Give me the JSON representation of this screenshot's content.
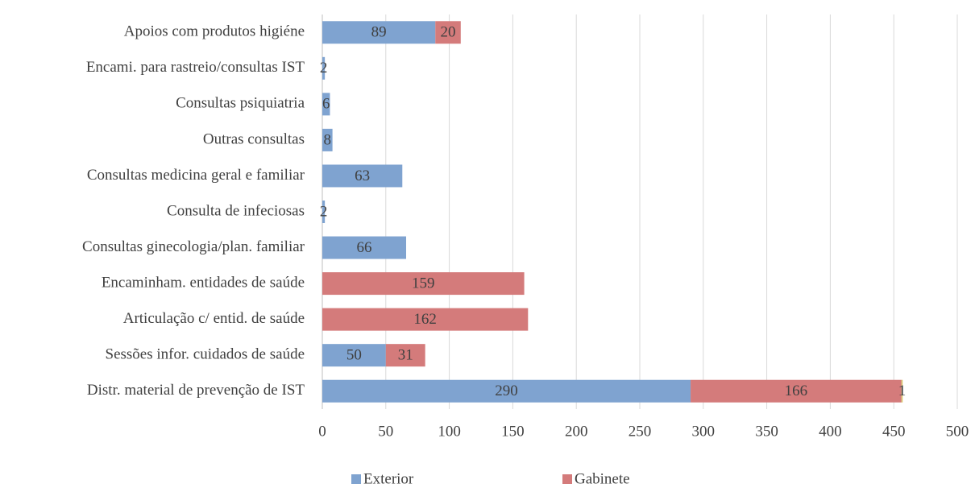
{
  "chart_data": {
    "type": "stacked-barh",
    "categories": [
      "Apoios com produtos higiéne",
      "Encami. para rastreio/consultas IST",
      "Consultas psiquiatria",
      "Outras consultas",
      "Consultas medicina geral e familiar",
      "Consulta de infeciosas",
      "Consultas ginecologia/plan. familiar",
      "Encaminham. entidades de saúde",
      "Articulação c/ entid. de saúde",
      "Sessões infor. cuidados de saúde",
      "Distr. material de prevenção de IST"
    ],
    "series": [
      {
        "name": "Exterior",
        "color": "#7fa3d0",
        "values": [
          89,
          2,
          6,
          8,
          63,
          2,
          66,
          null,
          null,
          50,
          290
        ]
      },
      {
        "name": "Gabinete",
        "color": "#d47b7b",
        "values": [
          20,
          null,
          null,
          null,
          null,
          null,
          null,
          159,
          162,
          31,
          166
        ]
      },
      {
        "color": "#d8c46a",
        "values": [
          null,
          null,
          null,
          null,
          null,
          null,
          null,
          null,
          null,
          null,
          1
        ]
      }
    ],
    "xlim": [
      0,
      500
    ],
    "xticks": [
      0,
      50,
      100,
      150,
      200,
      250,
      300,
      350,
      400,
      450,
      500
    ],
    "grid": true,
    "legend": "bottom"
  }
}
